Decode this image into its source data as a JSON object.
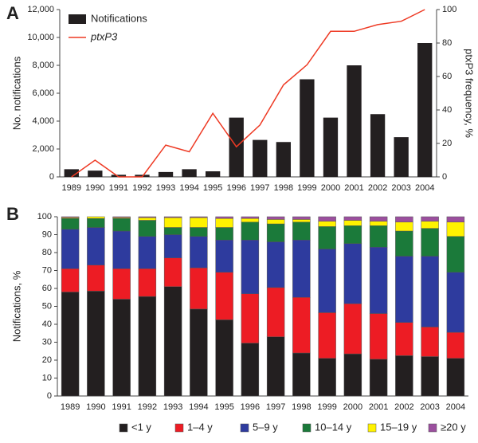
{
  "chart_data": [
    {
      "type": "bar",
      "panel": "A",
      "categories": [
        "1989",
        "1990",
        "1991",
        "1992",
        "1993",
        "1994",
        "1995",
        "1996",
        "1997",
        "1998",
        "1999",
        "2000",
        "2001",
        "2002",
        "2003",
        "2004"
      ],
      "ylabel": "No. notifications",
      "y2label": "ptxP3 frequency, %",
      "ylim": [
        0,
        12000
      ],
      "yticks": [
        0,
        {
          "value": 2000,
          "label": "2,000"
        },
        {
          "value": 4000,
          "label": "4,000"
        },
        {
          "value": 6000,
          "label": "6,000"
        },
        {
          "value": 8000,
          "label": "8,000"
        },
        {
          "value": 10000,
          "label": "10,000"
        },
        {
          "value": 12000,
          "label": "12,000"
        }
      ],
      "y2lim": [
        0,
        100
      ],
      "y2ticks": [
        0,
        20,
        40,
        60,
        80,
        100
      ],
      "legend": "upper left",
      "series": [
        {
          "name": "Notifications",
          "color": "#231f20",
          "values": [
            550,
            450,
            150,
            150,
            350,
            550,
            400,
            4250,
            2650,
            2500,
            7000,
            4250,
            8000,
            4500,
            2850,
            9600
          ]
        },
        {
          "name": "ptxP3",
          "type": "line",
          "axis": "y2",
          "color": "#ee3a24",
          "values": [
            0,
            10,
            0,
            0,
            19,
            15,
            38,
            18,
            31,
            55,
            67,
            87,
            87,
            91,
            93,
            100
          ]
        }
      ]
    },
    {
      "type": "stacked",
      "panel": "B",
      "categories": [
        "1989",
        "1990",
        "1991",
        "1992",
        "1993",
        "1994",
        "1995",
        "1996",
        "1997",
        "1998",
        "1999",
        "2000",
        "2001",
        "2002",
        "2003",
        "2004"
      ],
      "ylabel": "Notifications, %",
      "ylim": [
        0,
        100
      ],
      "yticks": [
        0,
        10,
        20,
        30,
        40,
        50,
        60,
        70,
        80,
        90,
        100
      ],
      "legend": "bottom",
      "series": [
        {
          "name": "<1 y",
          "color": "#231f20",
          "values": [
            58,
            58.5,
            54,
            55.5,
            61,
            48.5,
            42.5,
            29.5,
            33,
            24,
            21,
            23.5,
            20.5,
            22.5,
            22,
            21
          ]
        },
        {
          "name": "1–4 y",
          "color": "#ed1c24",
          "values": [
            13,
            14.5,
            17,
            15.5,
            16,
            23,
            26.5,
            27.5,
            27.5,
            31,
            25.5,
            28,
            25.5,
            18.5,
            16.5,
            14.5
          ]
        },
        {
          "name": "5–9 y",
          "color": "#2e3b9e",
          "values": [
            22,
            21,
            21,
            18,
            13,
            17.5,
            18,
            30,
            25.5,
            32,
            35.5,
            33.5,
            37,
            37,
            39.5,
            33.5
          ]
        },
        {
          "name": "10–14 y",
          "color": "#1b7a3a",
          "values": [
            6,
            5,
            7,
            9,
            4,
            5,
            7,
            10,
            10,
            10,
            12.5,
            10,
            12,
            14,
            15.5,
            20
          ]
        },
        {
          "name": "15–19 y",
          "color": "#fff200",
          "values": [
            0.5,
            1,
            0.5,
            1.5,
            5.5,
            5.5,
            5,
            2,
            2.5,
            1.5,
            3,
            3,
            2.5,
            5,
            4,
            8
          ]
        },
        {
          "name": "≥20 y",
          "color": "#9b4f9e",
          "values": [
            0.5,
            0,
            0.5,
            0.5,
            0.5,
            0.5,
            1,
            1,
            1.5,
            1.5,
            2.5,
            2,
            2.5,
            3,
            2.5,
            3
          ]
        }
      ]
    }
  ]
}
